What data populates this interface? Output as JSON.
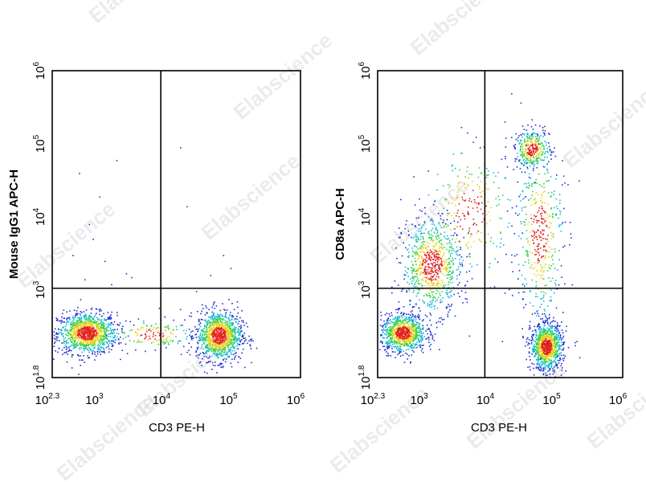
{
  "watermark": "Elabscience",
  "colors": {
    "low": "#1f2fd0",
    "mid": "#16b8d8",
    "midhigh": "#3ad24a",
    "high": "#e8d21a",
    "peak": "#e3221c"
  },
  "chart_data": [
    {
      "type": "scatter",
      "title": "",
      "xlabel": "CD3 PE-H",
      "ylabel": "Mouse IgG1 APC-H",
      "x_scale": "log10",
      "y_scale": "log10",
      "xlim": [
        200,
        1000000
      ],
      "ylim": [
        63,
        1000000
      ],
      "x_ticks": [
        {
          "base": "10",
          "exp": "2.3"
        },
        {
          "base": "10",
          "exp": "3"
        },
        {
          "base": "10",
          "exp": "4"
        },
        {
          "base": "10",
          "exp": "5"
        },
        {
          "base": "10",
          "exp": "6"
        }
      ],
      "y_ticks": [
        {
          "base": "10",
          "exp": "1.8"
        },
        {
          "base": "10",
          "exp": "3"
        },
        {
          "base": "10",
          "exp": "4"
        },
        {
          "base": "10",
          "exp": "5"
        },
        {
          "base": "10",
          "exp": "6"
        }
      ],
      "gates": {
        "x": 8300,
        "y": 1050
      },
      "populations": [
        {
          "cx": 650,
          "cy": 260,
          "sx": 0.22,
          "sy": 0.14,
          "n": 1100
        },
        {
          "cx": 60000,
          "cy": 240,
          "sx": 0.17,
          "sy": 0.17,
          "n": 1100
        },
        {
          "cx": 6000,
          "cy": 250,
          "sx": 0.3,
          "sy": 0.1,
          "n": 140
        }
      ],
      "sparse": [
        {
          "x": 500,
          "y": 40000
        },
        {
          "x": 1800,
          "y": 60000
        },
        {
          "x": 1000,
          "y": 19000
        },
        {
          "x": 800,
          "y": 5000
        },
        {
          "x": 400,
          "y": 3000
        },
        {
          "x": 1200,
          "y": 2500
        },
        {
          "x": 2500,
          "y": 1700
        },
        {
          "x": 600,
          "y": 1400
        },
        {
          "x": 16000,
          "y": 90000
        },
        {
          "x": 20000,
          "y": 14000
        },
        {
          "x": 70000,
          "y": 3000
        },
        {
          "x": 45000,
          "y": 1600
        },
        {
          "x": 90000,
          "y": 2000
        },
        {
          "x": 700,
          "y": 8000
        },
        {
          "x": 1500,
          "y": 1200
        },
        {
          "x": 3000,
          "y": 1500
        }
      ]
    },
    {
      "type": "scatter",
      "title": "",
      "xlabel": "CD3 PE-H",
      "ylabel": "CD8a APC-H",
      "x_scale": "log10",
      "y_scale": "log10",
      "xlim": [
        200,
        1000000
      ],
      "ylim": [
        63,
        1000000
      ],
      "x_ticks": [
        {
          "base": "10",
          "exp": "2.3"
        },
        {
          "base": "10",
          "exp": "3"
        },
        {
          "base": "10",
          "exp": "4"
        },
        {
          "base": "10",
          "exp": "5"
        },
        {
          "base": "10",
          "exp": "6"
        }
      ],
      "y_ticks": [
        {
          "base": "10",
          "exp": "1.8"
        },
        {
          "base": "10",
          "exp": "3"
        },
        {
          "base": "10",
          "exp": "4"
        },
        {
          "base": "10",
          "exp": "5"
        },
        {
          "base": "10",
          "exp": "6"
        }
      ],
      "gates": {
        "x": 8300,
        "y": 1050
      },
      "populations": [
        {
          "cx": 480,
          "cy": 260,
          "sx": 0.17,
          "sy": 0.13,
          "n": 900
        },
        {
          "cx": 1300,
          "cy": 2200,
          "sx": 0.22,
          "sy": 0.32,
          "n": 750
        },
        {
          "cx": 70000,
          "cy": 170,
          "sx": 0.12,
          "sy": 0.16,
          "n": 1000
        },
        {
          "cx": 42000,
          "cy": 85000,
          "sx": 0.13,
          "sy": 0.13,
          "n": 350
        },
        {
          "cx": 55000,
          "cy": 6000,
          "sx": 0.18,
          "sy": 0.6,
          "n": 420
        },
        {
          "cx": 5000,
          "cy": 12000,
          "sx": 0.35,
          "sy": 0.45,
          "n": 260
        }
      ],
      "sparse": [
        {
          "x": 200000,
          "y": 200
        },
        {
          "x": 220000,
          "y": 120
        },
        {
          "x": 30000,
          "y": 300
        },
        {
          "x": 15000,
          "y": 200
        }
      ]
    }
  ]
}
